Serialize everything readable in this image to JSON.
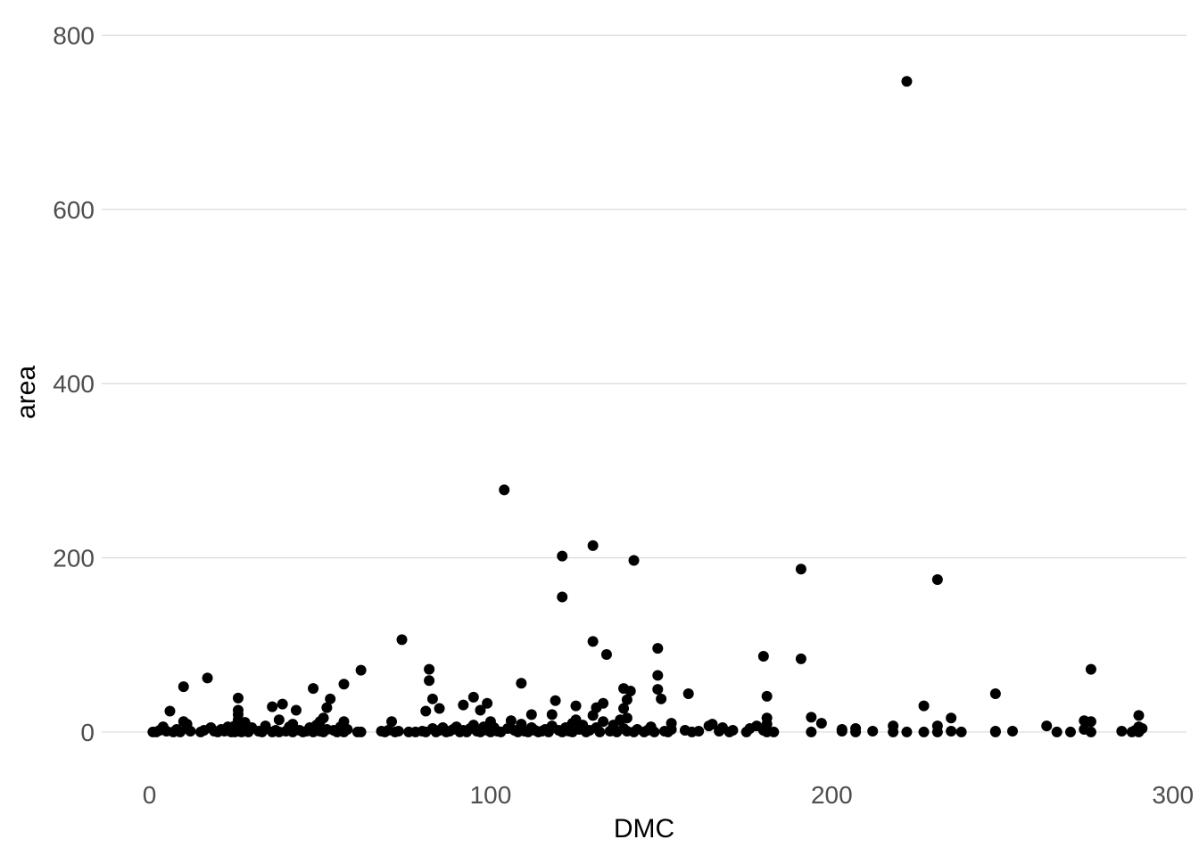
{
  "chart_data": {
    "type": "scatter",
    "title": "",
    "xlabel": "DMC",
    "ylabel": "area",
    "xlim": [
      -14,
      304
    ],
    "ylim": [
      -40,
      820
    ],
    "x_ticks": [
      0,
      100,
      200,
      300
    ],
    "y_ticks": [
      0,
      200,
      400,
      600,
      800
    ],
    "x_tick_labels": [
      "0",
      "100",
      "200",
      "300"
    ],
    "y_tick_labels": [
      "0",
      "200",
      "400",
      "600",
      "800"
    ],
    "grid": "horizontal-major",
    "point_color": "#000000",
    "points": [
      [
        1,
        0
      ],
      [
        2,
        0
      ],
      [
        3,
        2
      ],
      [
        4,
        6
      ],
      [
        5,
        1
      ],
      [
        6,
        24
      ],
      [
        7,
        0
      ],
      [
        8,
        3
      ],
      [
        9,
        0
      ],
      [
        10,
        12
      ],
      [
        10,
        52
      ],
      [
        11,
        4
      ],
      [
        11,
        9
      ],
      [
        12,
        1
      ],
      [
        15,
        0
      ],
      [
        16,
        2
      ],
      [
        17,
        62
      ],
      [
        18,
        5
      ],
      [
        19,
        1
      ],
      [
        20,
        0
      ],
      [
        21,
        3
      ],
      [
        22,
        1
      ],
      [
        23,
        6
      ],
      [
        24,
        0
      ],
      [
        25,
        7
      ],
      [
        26,
        1
      ],
      [
        27,
        0
      ],
      [
        25,
        0
      ],
      [
        26,
        8
      ],
      [
        26,
        14
      ],
      [
        26,
        20
      ],
      [
        26,
        25
      ],
      [
        26,
        39
      ],
      [
        27,
        3
      ],
      [
        28,
        11
      ],
      [
        29,
        0
      ],
      [
        30,
        5
      ],
      [
        32,
        1
      ],
      [
        33,
        0
      ],
      [
        34,
        7
      ],
      [
        36,
        0
      ],
      [
        36,
        29
      ],
      [
        37,
        2
      ],
      [
        38,
        0
      ],
      [
        38,
        14
      ],
      [
        39,
        32
      ],
      [
        40,
        1
      ],
      [
        41,
        6
      ],
      [
        42,
        0
      ],
      [
        42,
        9
      ],
      [
        43,
        25
      ],
      [
        44,
        2
      ],
      [
        45,
        0
      ],
      [
        46,
        1
      ],
      [
        47,
        5
      ],
      [
        48,
        0
      ],
      [
        48,
        50
      ],
      [
        49,
        8
      ],
      [
        50,
        1
      ],
      [
        50,
        12
      ],
      [
        51,
        0
      ],
      [
        51,
        16
      ],
      [
        52,
        3
      ],
      [
        52,
        28
      ],
      [
        53,
        38
      ],
      [
        54,
        2
      ],
      [
        55,
        0
      ],
      [
        56,
        6
      ],
      [
        57,
        0
      ],
      [
        57,
        55
      ],
      [
        57,
        12
      ],
      [
        58,
        3
      ],
      [
        61,
        0
      ],
      [
        62,
        71
      ],
      [
        62,
        0
      ],
      [
        68,
        1
      ],
      [
        69,
        0
      ],
      [
        70,
        2
      ],
      [
        71,
        12
      ],
      [
        72,
        0
      ],
      [
        73,
        1
      ],
      [
        74,
        106
      ],
      [
        76,
        0
      ],
      [
        78,
        0
      ],
      [
        80,
        1
      ],
      [
        81,
        0
      ],
      [
        81,
        24
      ],
      [
        82,
        59
      ],
      [
        82,
        72
      ],
      [
        83,
        38
      ],
      [
        83,
        4
      ],
      [
        84,
        0
      ],
      [
        85,
        2
      ],
      [
        85,
        27
      ],
      [
        86,
        5
      ],
      [
        87,
        0
      ],
      [
        88,
        1
      ],
      [
        89,
        3
      ],
      [
        90,
        6
      ],
      [
        91,
        0
      ],
      [
        92,
        2
      ],
      [
        92,
        31
      ],
      [
        93,
        0
      ],
      [
        94,
        4
      ],
      [
        95,
        8
      ],
      [
        95,
        40
      ],
      [
        96,
        1
      ],
      [
        97,
        0
      ],
      [
        97,
        25
      ],
      [
        98,
        6
      ],
      [
        99,
        2
      ],
      [
        99,
        33
      ],
      [
        100,
        0
      ],
      [
        100,
        12
      ],
      [
        101,
        5
      ],
      [
        102,
        1
      ],
      [
        103,
        0
      ],
      [
        104,
        278
      ],
      [
        105,
        4
      ],
      [
        106,
        13
      ],
      [
        107,
        2
      ],
      [
        108,
        0
      ],
      [
        109,
        9
      ],
      [
        109,
        56
      ],
      [
        110,
        1
      ],
      [
        111,
        0
      ],
      [
        112,
        5
      ],
      [
        112,
        20
      ],
      [
        113,
        2
      ],
      [
        114,
        0
      ],
      [
        115,
        1
      ],
      [
        116,
        3
      ],
      [
        117,
        0
      ],
      [
        118,
        7
      ],
      [
        118,
        20
      ],
      [
        119,
        36
      ],
      [
        120,
        2
      ],
      [
        121,
        0
      ],
      [
        121,
        155
      ],
      [
        121,
        202
      ],
      [
        122,
        5
      ],
      [
        123,
        1
      ],
      [
        124,
        0
      ],
      [
        124,
        10
      ],
      [
        125,
        14
      ],
      [
        125,
        30
      ],
      [
        126,
        3
      ],
      [
        127,
        8
      ],
      [
        128,
        0
      ],
      [
        129,
        2
      ],
      [
        130,
        104
      ],
      [
        130,
        214
      ],
      [
        130,
        19
      ],
      [
        131,
        28
      ],
      [
        131,
        5
      ],
      [
        132,
        0
      ],
      [
        133,
        12
      ],
      [
        133,
        33
      ],
      [
        134,
        89
      ],
      [
        135,
        1
      ],
      [
        136,
        8
      ],
      [
        137,
        0
      ],
      [
        138,
        14
      ],
      [
        139,
        4
      ],
      [
        139,
        27
      ],
      [
        139,
        50
      ],
      [
        140,
        1
      ],
      [
        140,
        16
      ],
      [
        140,
        37
      ],
      [
        141,
        47
      ],
      [
        142,
        197
      ],
      [
        142,
        0
      ],
      [
        143,
        3
      ],
      [
        145,
        0
      ],
      [
        146,
        2
      ],
      [
        147,
        6
      ],
      [
        148,
        0
      ],
      [
        149,
        96
      ],
      [
        149,
        49
      ],
      [
        149,
        65
      ],
      [
        150,
        38
      ],
      [
        151,
        1
      ],
      [
        152,
        0
      ],
      [
        153,
        10
      ],
      [
        153,
        3
      ],
      [
        157,
        2
      ],
      [
        158,
        44
      ],
      [
        159,
        0
      ],
      [
        161,
        1
      ],
      [
        164,
        7
      ],
      [
        165,
        9
      ],
      [
        167,
        1
      ],
      [
        168,
        5
      ],
      [
        170,
        0
      ],
      [
        171,
        2
      ],
      [
        175,
        0
      ],
      [
        176,
        4
      ],
      [
        178,
        7
      ],
      [
        180,
        87
      ],
      [
        180,
        2
      ],
      [
        181,
        0
      ],
      [
        181,
        9
      ],
      [
        181,
        16
      ],
      [
        181,
        41
      ],
      [
        183,
        0
      ],
      [
        191,
        84
      ],
      [
        191,
        187
      ],
      [
        194,
        0
      ],
      [
        194,
        17
      ],
      [
        197,
        10
      ],
      [
        203,
        1
      ],
      [
        203,
        3
      ],
      [
        207,
        0
      ],
      [
        207,
        4
      ],
      [
        212,
        1
      ],
      [
        218,
        7
      ],
      [
        218,
        0
      ],
      [
        222,
        747
      ],
      [
        222,
        0
      ],
      [
        227,
        0
      ],
      [
        227,
        30
      ],
      [
        231,
        0
      ],
      [
        231,
        175
      ],
      [
        231,
        7
      ],
      [
        235,
        16
      ],
      [
        235,
        1
      ],
      [
        238,
        0
      ],
      [
        248,
        0
      ],
      [
        248,
        44
      ],
      [
        248,
        1
      ],
      [
        253,
        1
      ],
      [
        263,
        7
      ],
      [
        266,
        0
      ],
      [
        270,
        0
      ],
      [
        274,
        13
      ],
      [
        274,
        3
      ],
      [
        276,
        72
      ],
      [
        276,
        12
      ],
      [
        276,
        0
      ],
      [
        285,
        1
      ],
      [
        288,
        0
      ],
      [
        289,
        2
      ],
      [
        290,
        19
      ],
      [
        290,
        6
      ],
      [
        290,
        0
      ],
      [
        291,
        4
      ]
    ]
  }
}
